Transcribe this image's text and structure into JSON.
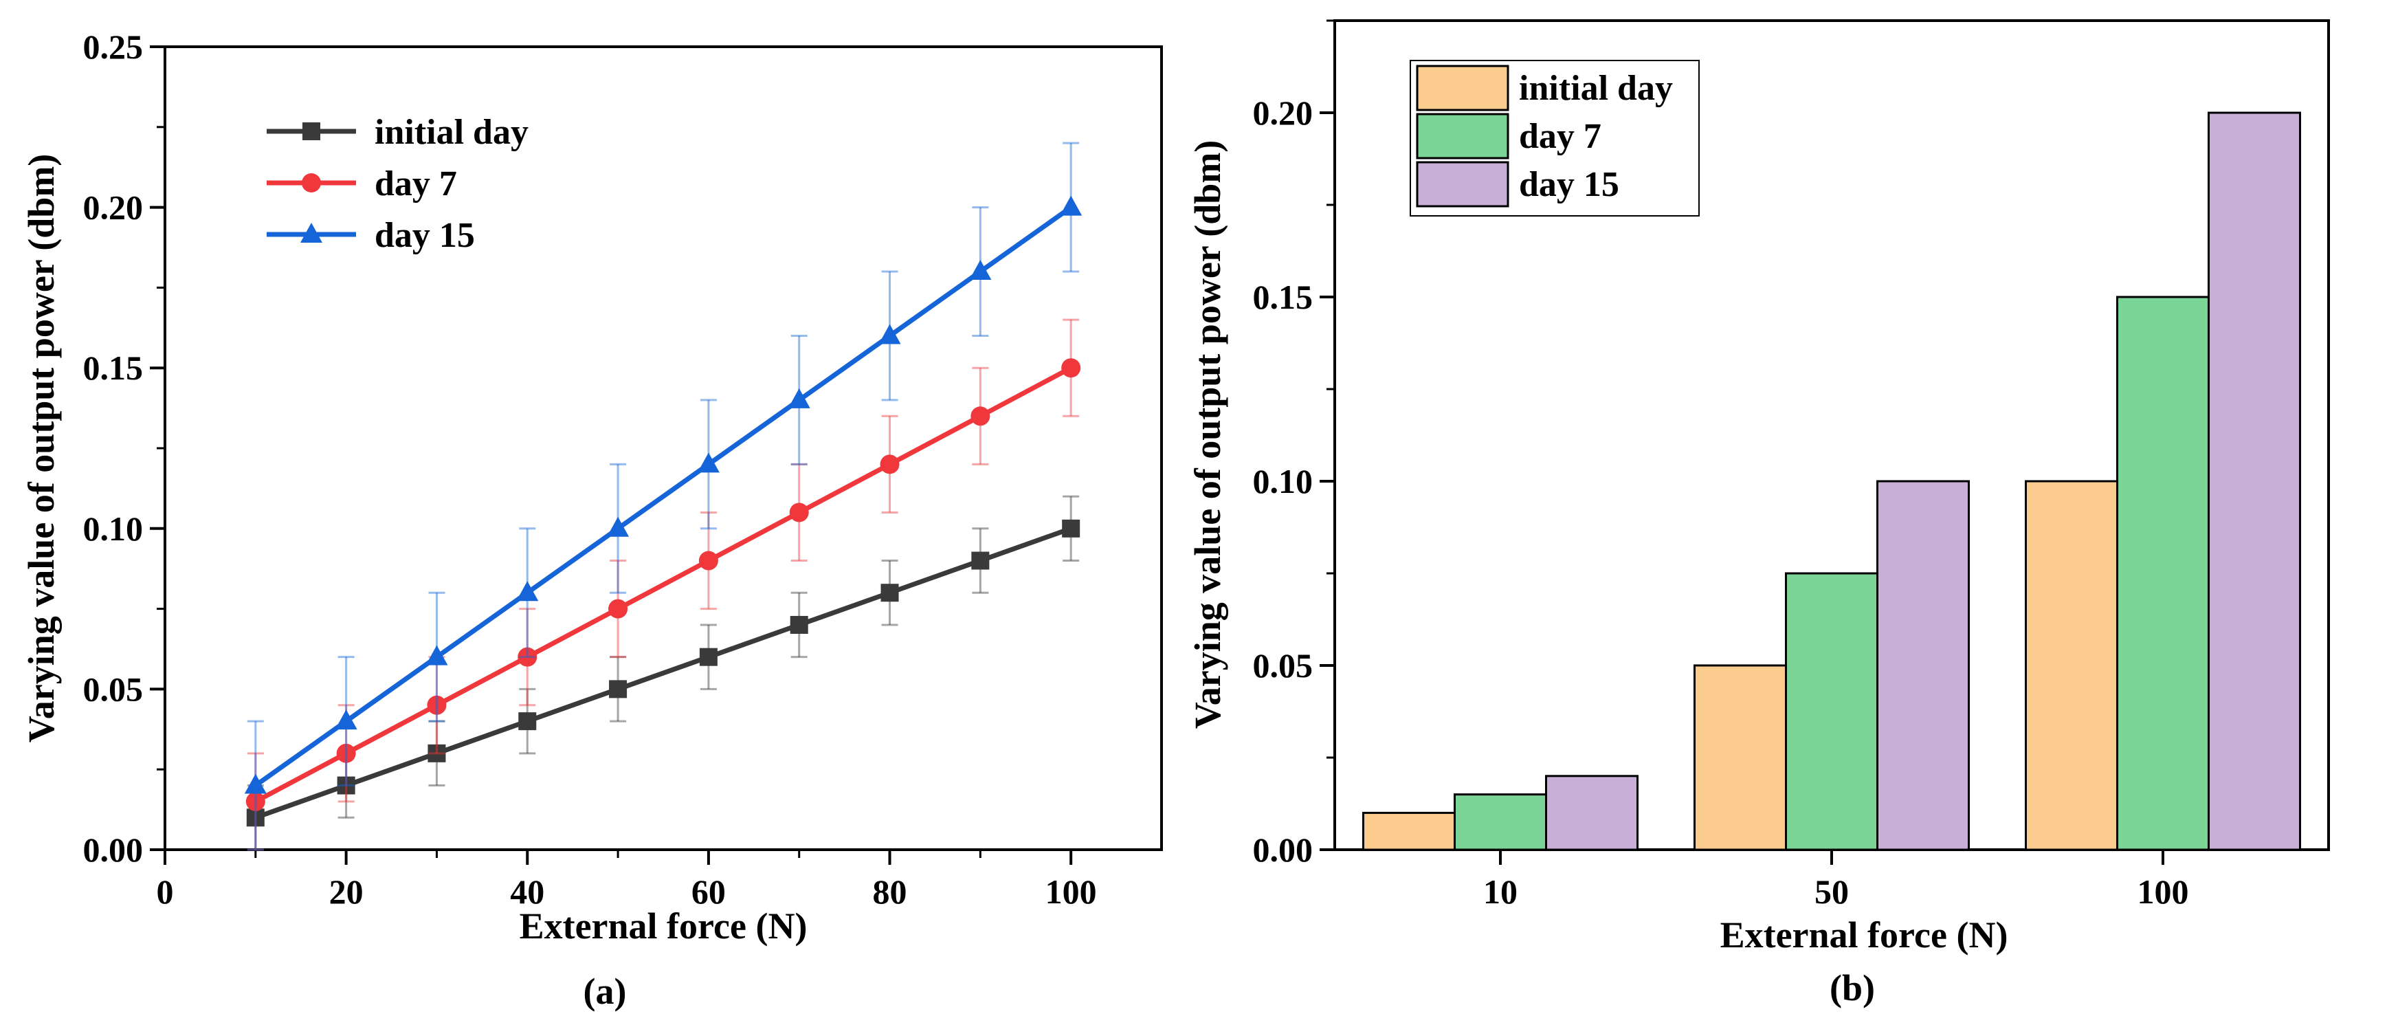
{
  "chart_data": [
    {
      "type": "line",
      "panel_label": "(a)",
      "xlabel": "External force (N)",
      "ylabel": "Varying value of output power (dbm)",
      "xlim": [
        0,
        110
      ],
      "ylim": [
        0,
        0.25
      ],
      "xticks": [
        0,
        20,
        40,
        60,
        80,
        100
      ],
      "yticks": [
        0.0,
        0.05,
        0.1,
        0.15,
        0.2,
        0.25
      ],
      "xtick_labels": [
        "0",
        "20",
        "40",
        "60",
        "80",
        "100"
      ],
      "ytick_labels": [
        "0.00",
        "0.05",
        "0.10",
        "0.15",
        "0.20",
        "0.25"
      ],
      "legend_position": "top-left",
      "grid": false,
      "x": [
        10,
        20,
        30,
        40,
        50,
        60,
        70,
        80,
        90,
        100
      ],
      "series": [
        {
          "name": "initial day",
          "color": "#3a3a3a",
          "marker": "square",
          "values": [
            0.01,
            0.02,
            0.03,
            0.04,
            0.05,
            0.06,
            0.07,
            0.08,
            0.09,
            0.1
          ],
          "error": [
            0.01,
            0.01,
            0.01,
            0.01,
            0.01,
            0.01,
            0.01,
            0.01,
            0.01,
            0.01
          ]
        },
        {
          "name": "day 7",
          "color": "#f0373c",
          "marker": "circle",
          "values": [
            0.015,
            0.03,
            0.045,
            0.06,
            0.075,
            0.09,
            0.105,
            0.12,
            0.135,
            0.15
          ],
          "error": [
            0.015,
            0.015,
            0.015,
            0.015,
            0.015,
            0.015,
            0.015,
            0.015,
            0.015,
            0.015
          ]
        },
        {
          "name": "day 15",
          "color": "#1565d8",
          "marker": "triangle",
          "values": [
            0.02,
            0.04,
            0.06,
            0.08,
            0.1,
            0.12,
            0.14,
            0.16,
            0.18,
            0.2
          ],
          "error": [
            0.02,
            0.02,
            0.02,
            0.02,
            0.02,
            0.02,
            0.02,
            0.02,
            0.02,
            0.02
          ]
        }
      ]
    },
    {
      "type": "bar",
      "panel_label": "(b)",
      "xlabel": "External force (N)",
      "ylabel": "Varying value of output power (dbm)",
      "ylim": [
        0,
        0.225
      ],
      "yticks": [
        0.0,
        0.05,
        0.1,
        0.15,
        0.2
      ],
      "ytick_labels": [
        "0.00",
        "0.05",
        "0.10",
        "0.15",
        "0.20"
      ],
      "categories": [
        "10",
        "50",
        "100"
      ],
      "legend_position": "top-left",
      "grid": false,
      "series": [
        {
          "name": "initial day",
          "color": "#fccc8f",
          "values": [
            0.01,
            0.05,
            0.1
          ]
        },
        {
          "name": "day 7",
          "color": "#7bd596",
          "values": [
            0.015,
            0.075,
            0.15
          ]
        },
        {
          "name": "day 15",
          "color": "#c8afd8",
          "values": [
            0.02,
            0.1,
            0.2
          ]
        }
      ]
    }
  ]
}
